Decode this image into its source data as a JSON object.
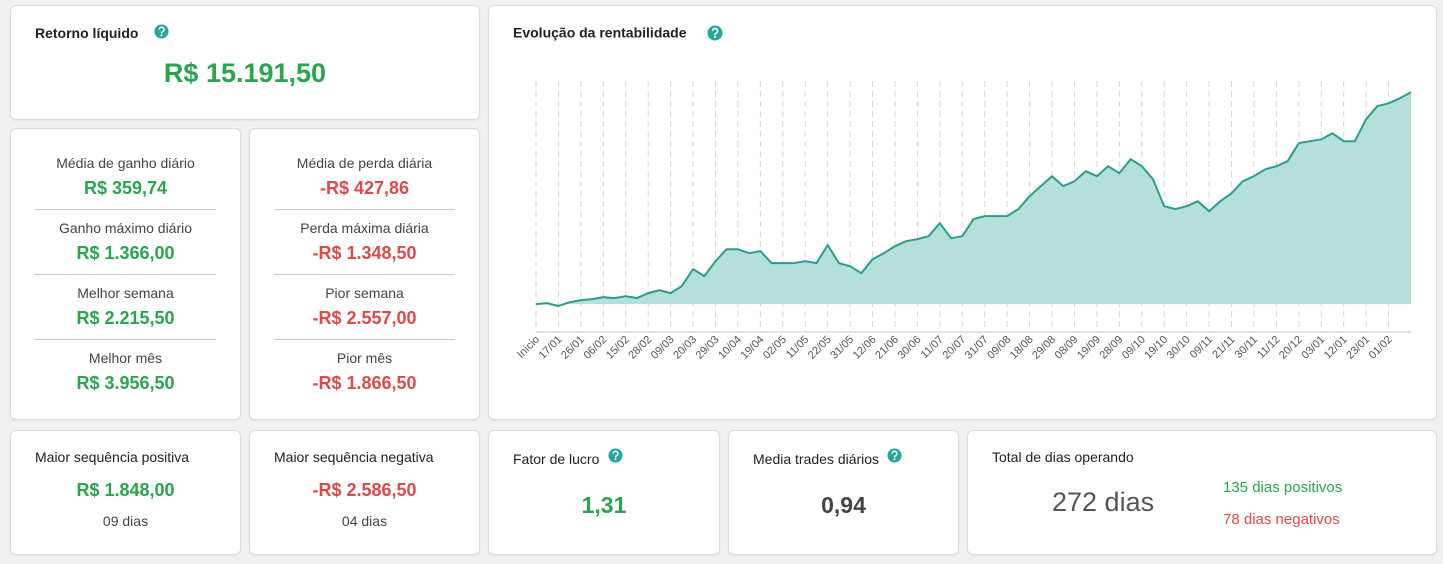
{
  "net_return": {
    "title": "Retorno líquido",
    "value": "R$ 15.191,50"
  },
  "gains": [
    {
      "label": "Média de ganho diário",
      "value": "R$ 359,74"
    },
    {
      "label": "Ganho máximo diário",
      "value": "R$ 1.366,00"
    },
    {
      "label": "Melhor semana",
      "value": "R$ 2.215,50"
    },
    {
      "label": "Melhor mês",
      "value": "R$ 3.956,50"
    }
  ],
  "losses": [
    {
      "label": "Média de perda diária",
      "value": "-R$ 427,86"
    },
    {
      "label": "Perda máxima diária",
      "value": "-R$ 1.348,50"
    },
    {
      "label": "Pior semana",
      "value": "-R$ 2.557,00"
    },
    {
      "label": "Pior mês",
      "value": "-R$ 1.866,50"
    }
  ],
  "streaks": [
    {
      "title": "Maior sequência positiva",
      "value": "R$ 1.848,00",
      "days": "09 dias"
    },
    {
      "title": "Maior sequência negativa",
      "value": "-R$ 2.586,50",
      "days": "04 dias"
    }
  ],
  "profit_factor": {
    "title": "Fator de lucro",
    "value": "1,31"
  },
  "avg_trades": {
    "title": "Media trades diários",
    "value": "0,94"
  },
  "days": {
    "title": "Total de dias operando",
    "total": "272 dias",
    "positive": "135 dias positivos",
    "negative": "78 dias negativos"
  },
  "chart_data": {
    "type": "area",
    "title": "Evolução da rentabilidade",
    "color": "#2a9d8f",
    "fill_color": "#b5e0da",
    "categories": [
      "Início",
      null,
      "17/01",
      null,
      "26/01",
      null,
      "06/02",
      null,
      "15/02",
      null,
      "28/02",
      null,
      "09/03",
      null,
      "20/03",
      null,
      "29/03",
      null,
      "10/04",
      null,
      "19/04",
      null,
      "02/05",
      null,
      "11/05",
      null,
      "22/05",
      null,
      "31/05",
      null,
      "12/06",
      null,
      "21/06",
      null,
      "30/06",
      null,
      "11/07",
      null,
      "20/07",
      null,
      "31/07",
      null,
      "09/08",
      null,
      "18/08",
      null,
      "29/08",
      null,
      "08/09",
      null,
      "19/09",
      null,
      "28/09",
      null,
      "09/10",
      null,
      "19/10",
      null,
      "30/10",
      null,
      "09/11",
      null,
      "21/11",
      null,
      "30/11",
      null,
      "11/12",
      null,
      "20/12",
      null,
      "03/01",
      null,
      "12/01",
      null,
      "23/01",
      null,
      "01/02",
      null,
      null
    ],
    "values": [
      0,
      70,
      -140,
      140,
      290,
      360,
      500,
      430,
      570,
      430,
      790,
      1000,
      790,
      1290,
      2510,
      2010,
      3080,
      3940,
      3940,
      3650,
      3800,
      2940,
      2940,
      2940,
      3080,
      2940,
      4230,
      2940,
      2720,
      2220,
      3220,
      3650,
      4160,
      4510,
      4660,
      4870,
      5800,
      4730,
      4870,
      6090,
      6310,
      6310,
      6310,
      6810,
      7740,
      8460,
      9170,
      8460,
      8810,
      9530,
      9170,
      9890,
      9390,
      10390,
      9890,
      8960,
      7020,
      6810,
      7020,
      7380,
      6660,
      7380,
      7950,
      8810,
      9170,
      9670,
      9890,
      10250,
      11540,
      11680,
      11820,
      12250,
      11680,
      11680,
      13260,
      14190,
      14400,
      14760,
      15190
    ],
    "ylim": [
      -2000,
      16000
    ],
    "grid": true
  }
}
